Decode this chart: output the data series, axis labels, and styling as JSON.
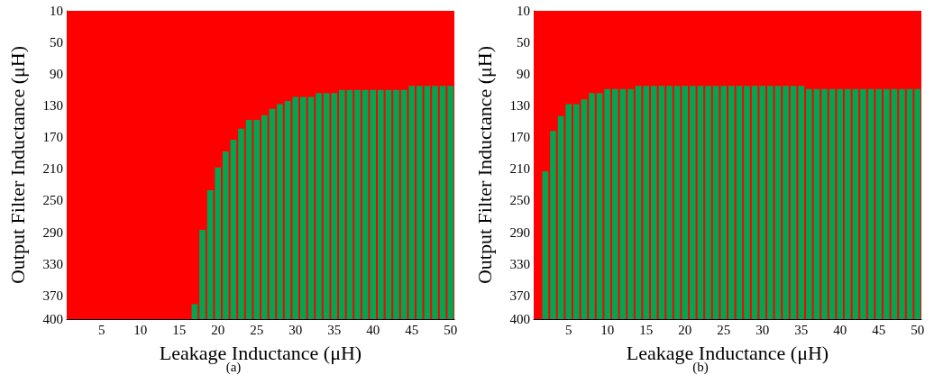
{
  "chart_data": [
    {
      "type": "bar",
      "annotations": [
        "(a)"
      ],
      "xlabel": "Leakage Inductance (μH)",
      "ylabel": "Output Filter Inductance (μH)",
      "categories": [
        null,
        null,
        null,
        null,
        "5",
        null,
        null,
        null,
        null,
        "10",
        null,
        null,
        null,
        null,
        "15",
        null,
        null,
        null,
        null,
        "20",
        null,
        null,
        null,
        null,
        "25",
        null,
        null,
        null,
        null,
        "30",
        null,
        null,
        null,
        null,
        "35",
        null,
        null,
        null,
        null,
        "40",
        null,
        null,
        null,
        null,
        "45",
        null,
        null,
        null,
        null,
        "50"
      ],
      "series": [
        {
          "color": "#00a651",
          "base": [
            null,
            null,
            null,
            null,
            null,
            null,
            null,
            null,
            null,
            null,
            null,
            null,
            null,
            null,
            null,
            null,
            381,
            287,
            237,
            208,
            188,
            173,
            159,
            148,
            148,
            142,
            134,
            128,
            124,
            119,
            119,
            119,
            114,
            114,
            114,
            110,
            110,
            110,
            110,
            110,
            110,
            110,
            110,
            110,
            105,
            105,
            105,
            105,
            105,
            105
          ],
          "values": [
            null,
            null,
            null,
            null,
            null,
            null,
            null,
            null,
            null,
            null,
            null,
            null,
            null,
            null,
            null,
            null,
            19,
            113,
            163,
            192,
            212,
            227,
            241,
            252,
            252,
            258,
            266,
            272,
            276,
            281,
            281,
            281,
            286,
            286,
            286,
            290,
            290,
            290,
            290,
            290,
            290,
            290,
            290,
            290,
            295,
            295,
            295,
            295,
            295,
            295
          ]
        }
      ],
      "bands": [
        {
          "axis": "y",
          "from": 10,
          "to": 400,
          "color": "#ff0000"
        }
      ],
      "ylim": [
        400,
        10
      ],
      "yticks": [
        10,
        50,
        90,
        130,
        170,
        210,
        250,
        290,
        330,
        370,
        400
      ]
    },
    {
      "type": "bar",
      "annotations": [
        "(b)"
      ],
      "xlabel": "Leakage Inductance (μH)",
      "ylabel": "Output Filter Inductance (μH)",
      "categories": [
        null,
        null,
        null,
        null,
        "5",
        null,
        null,
        null,
        null,
        "10",
        null,
        null,
        null,
        null,
        "15",
        null,
        null,
        null,
        null,
        "20",
        null,
        null,
        null,
        null,
        "25",
        null,
        null,
        null,
        null,
        "30",
        null,
        null,
        null,
        null,
        "35",
        null,
        null,
        null,
        null,
        "40",
        null,
        null,
        null,
        null,
        "45",
        null,
        null,
        null,
        null,
        "50"
      ],
      "series": [
        {
          "color": "#00a651",
          "base": [
            null,
            213,
            162,
            143,
            128,
            128,
            122,
            114,
            114,
            109,
            109,
            109,
            109,
            105,
            105,
            105,
            105,
            105,
            105,
            105,
            105,
            105,
            105,
            105,
            105,
            105,
            105,
            105,
            105,
            105,
            105,
            105,
            105,
            105,
            105,
            109,
            109,
            109,
            109,
            109,
            109,
            109,
            109,
            109,
            109,
            109,
            109,
            109,
            109,
            109
          ],
          "values": [
            null,
            187,
            238,
            257,
            272,
            272,
            278,
            286,
            286,
            291,
            291,
            291,
            291,
            295,
            295,
            295,
            295,
            295,
            295,
            295,
            295,
            295,
            295,
            295,
            295,
            295,
            295,
            295,
            295,
            295,
            295,
            295,
            295,
            295,
            295,
            291,
            291,
            291,
            291,
            291,
            291,
            291,
            291,
            291,
            291,
            291,
            291,
            291,
            291,
            291
          ]
        }
      ],
      "bands": [
        {
          "axis": "y",
          "from": 10,
          "to": 400,
          "color": "#ff0000"
        }
      ],
      "ylim": [
        400,
        10
      ],
      "yticks": [
        10,
        50,
        90,
        130,
        170,
        210,
        250,
        290,
        330,
        370,
        400
      ]
    }
  ]
}
